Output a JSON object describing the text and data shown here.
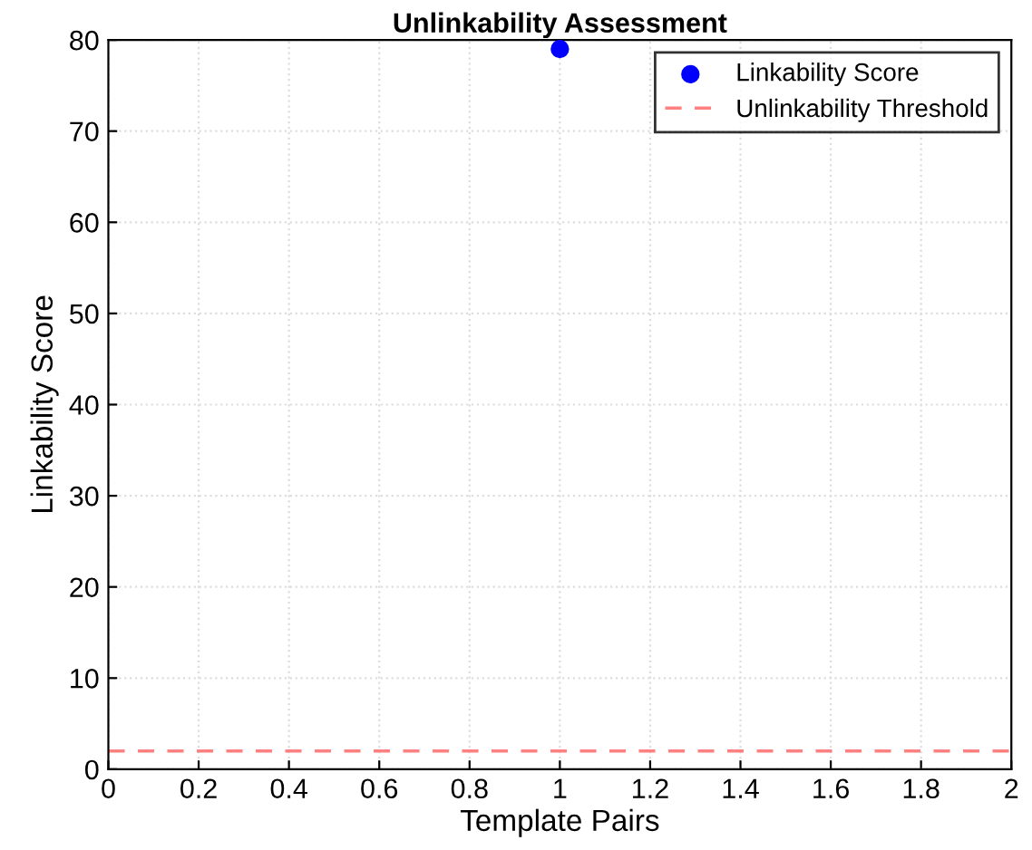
{
  "chart_data": {
    "type": "scatter",
    "title": "Unlinkability Assessment",
    "xlabel": "Template Pairs",
    "ylabel": "Linkability Score",
    "x": [
      1
    ],
    "series": [
      {
        "name": "Linkability Score",
        "color": "#0000ff",
        "values": [
          79
        ]
      }
    ],
    "ref_lines": [
      {
        "axis": "y",
        "value": 2,
        "label": "Unlinkability Threshold",
        "color": "#ff8080",
        "line_style": "dashed"
      }
    ],
    "xlim": [
      0,
      2
    ],
    "xticks": [
      0,
      0.2,
      0.4,
      0.6,
      0.8,
      1,
      1.2,
      1.4,
      1.6,
      1.8,
      2
    ],
    "ylim": [
      0,
      80
    ],
    "yticks": [
      0,
      10,
      20,
      30,
      40,
      50,
      60,
      70,
      80
    ],
    "grid": true,
    "legend": "top right",
    "marker": "circle"
  }
}
